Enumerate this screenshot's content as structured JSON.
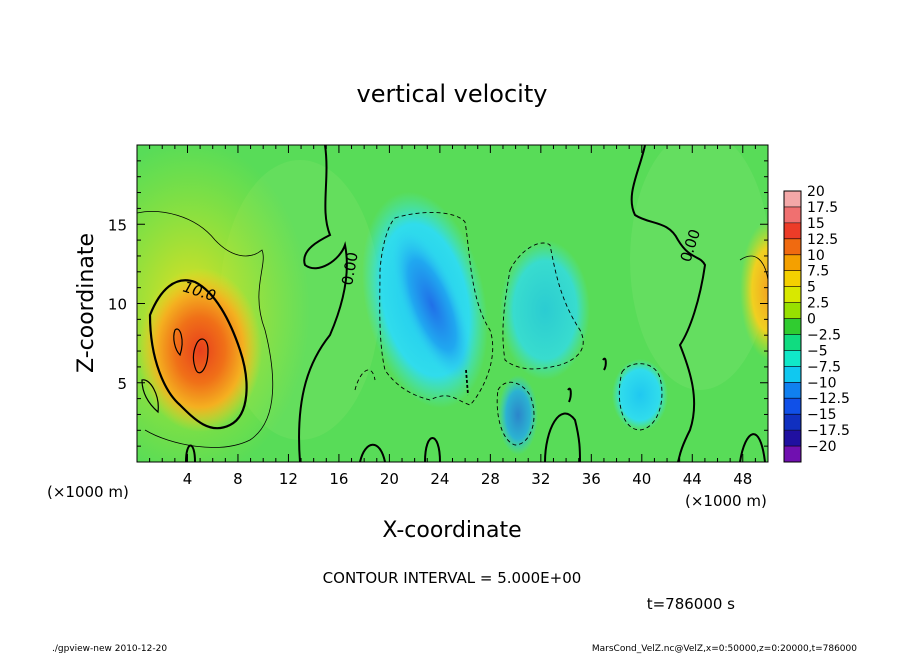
{
  "chart_data": {
    "type": "heatmap",
    "title": "vertical velocity",
    "xlabel": "X-coordinate",
    "ylabel": "Z-coordinate",
    "x_unit_left": "(×1000 m)",
    "x_unit_right": "(×1000 m)",
    "xlim": [
      0,
      50
    ],
    "ylim": [
      0,
      20
    ],
    "x_ticks": [
      4,
      8,
      12,
      16,
      20,
      24,
      28,
      32,
      36,
      40,
      44,
      48
    ],
    "y_ticks": [
      5,
      10,
      15
    ],
    "colorbar": {
      "levels": [
        20,
        17.5,
        15,
        12.5,
        10,
        7.5,
        5,
        2.5,
        0,
        -2.5,
        -5,
        -7.5,
        -10,
        -12.5,
        -15,
        -17.5,
        -20
      ],
      "labels": [
        "20",
        "17.5",
        "15",
        "12.5",
        "10",
        "7.5",
        "5",
        "2.5",
        "0",
        "−2.5",
        "−5",
        "−7.5",
        "−10",
        "−12.5",
        "−15",
        "−17.5",
        "−20"
      ],
      "colors": [
        "#f4a8a8",
        "#f07070",
        "#ec3c28",
        "#f06a10",
        "#f4a000",
        "#f4d000",
        "#d8e800",
        "#98e000",
        "#30cc30",
        "#10dc80",
        "#10e8c8",
        "#10c8f0",
        "#1080f0",
        "#1050e8",
        "#1030c0",
        "#2010a0",
        "#7010b0"
      ]
    },
    "contour_labels": [
      {
        "text": "10.0",
        "x": 4.3,
        "y": 11.4
      },
      {
        "text": "0.00",
        "x": 16.5,
        "y": 12.6
      },
      {
        "text": "0.00",
        "x": 44.3,
        "y": 13.7
      }
    ],
    "features": [
      {
        "name": "warm updraft core",
        "x": 5.5,
        "y": 7.5,
        "value": 12.5
      },
      {
        "name": "updraft right edge",
        "x": 49.5,
        "y": 11,
        "value": 7.5
      },
      {
        "name": "downdraft band",
        "x": 23.5,
        "y": 10,
        "value": -10
      },
      {
        "name": "downdraft lower",
        "x": 30,
        "y": 3,
        "value": -7.5
      },
      {
        "name": "downdraft small",
        "x": 39.5,
        "y": 5,
        "value": -7.5
      }
    ],
    "contour_interval_text": "CONTOUR INTERVAL = 5.000E+00",
    "time_text": "t=786000 s"
  },
  "footer": {
    "left": "./gpview-new   2010-12-20",
    "right": "MarsCond_VelZ.nc@VelZ,x=0:50000,z=0:20000,t=786000"
  }
}
